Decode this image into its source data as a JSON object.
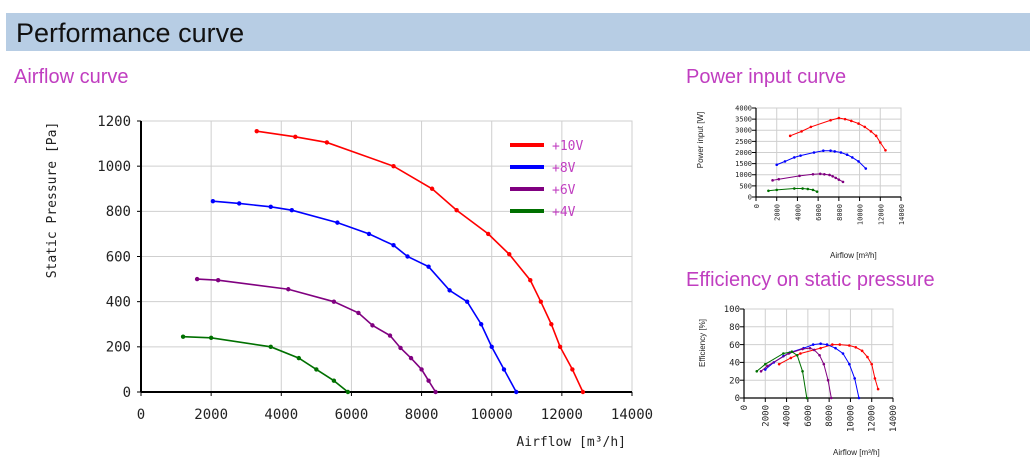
{
  "page": {
    "title": "Performance curve",
    "accent": "#c03ec0",
    "header_bg": "#b7cde4"
  },
  "chart_data": [
    {
      "title": "Airflow curve",
      "type": "line",
      "xlabel": "Airflow [m³/h]",
      "ylabel": "Static Pressure [Pa]",
      "xlim": [
        0,
        14000
      ],
      "ylim": [
        0,
        1200
      ],
      "xticks": [
        0,
        2000,
        4000,
        6000,
        8000,
        10000,
        12000,
        14000
      ],
      "yticks": [
        0,
        200,
        400,
        600,
        800,
        1000,
        1200
      ],
      "grid": true,
      "legend": "top-right",
      "series": [
        {
          "name": "+10V",
          "color": "#ff0000",
          "x": [
            3300,
            4400,
            5300,
            7200,
            8300,
            9000,
            9900,
            10500,
            11100,
            11400,
            11700,
            11950,
            12300,
            12600
          ],
          "y": [
            1155,
            1130,
            1105,
            1000,
            900,
            805,
            700,
            610,
            495,
            400,
            300,
            200,
            100,
            0
          ]
        },
        {
          "name": "+8V",
          "color": "#0000ff",
          "x": [
            2050,
            2800,
            3700,
            4300,
            5600,
            6500,
            7200,
            7600,
            8200,
            8800,
            9300,
            9700,
            10000,
            10350,
            10700
          ],
          "y": [
            845,
            835,
            820,
            805,
            750,
            700,
            650,
            600,
            555,
            450,
            400,
            300,
            200,
            100,
            0
          ]
        },
        {
          "name": "+6V",
          "color": "#800080",
          "x": [
            1600,
            2200,
            4200,
            5500,
            6200,
            6600,
            7100,
            7400,
            7700,
            8000,
            8200,
            8400
          ],
          "y": [
            500,
            495,
            455,
            400,
            350,
            295,
            250,
            195,
            150,
            100,
            50,
            0
          ]
        },
        {
          "name": "+4V",
          "color": "#007000",
          "x": [
            1200,
            2000,
            3700,
            4500,
            5000,
            5500,
            5900
          ],
          "y": [
            245,
            240,
            200,
            150,
            100,
            50,
            0
          ]
        }
      ]
    },
    {
      "title": "Power input curve",
      "type": "line",
      "xlabel": "Airflow [m³/h]",
      "ylabel": "Power input [W]",
      "xlim": [
        0,
        14000
      ],
      "ylim": [
        0,
        4000
      ],
      "xticks": [
        0,
        2000,
        4000,
        6000,
        8000,
        10000,
        12000,
        14000
      ],
      "yticks": [
        0,
        500,
        1000,
        1500,
        2000,
        2500,
        3000,
        3500,
        4000
      ],
      "grid": true,
      "series": [
        {
          "color": "#ff0000",
          "x": [
            3300,
            4400,
            5300,
            7200,
            8000,
            8600,
            9200,
            9900,
            10500,
            11100,
            11600,
            12000,
            12500
          ],
          "y": [
            2750,
            2950,
            3150,
            3450,
            3550,
            3500,
            3420,
            3300,
            3150,
            2950,
            2750,
            2450,
            2100
          ]
        },
        {
          "color": "#0000ff",
          "x": [
            2000,
            2800,
            3700,
            4300,
            5600,
            6500,
            7200,
            7600,
            8200,
            8800,
            9300,
            9900,
            10600
          ],
          "y": [
            1450,
            1600,
            1780,
            1860,
            2000,
            2080,
            2080,
            2050,
            2000,
            1900,
            1780,
            1600,
            1280
          ]
        },
        {
          "color": "#800080",
          "x": [
            1600,
            2200,
            4200,
            5500,
            6200,
            6600,
            7100,
            7400,
            7700,
            8000,
            8400
          ],
          "y": [
            750,
            800,
            950,
            1020,
            1040,
            1020,
            990,
            930,
            860,
            780,
            680
          ]
        },
        {
          "color": "#007000",
          "x": [
            1200,
            2000,
            3700,
            4500,
            5000,
            5500,
            5900
          ],
          "y": [
            280,
            320,
            380,
            380,
            360,
            320,
            240
          ]
        }
      ]
    },
    {
      "title": "Efficiency on static pressure",
      "type": "line",
      "xlabel": "Airflow [m³/h]",
      "ylabel": "Efficiency [%]",
      "xlim": [
        0,
        14000
      ],
      "ylim": [
        0,
        100
      ],
      "xticks": [
        0,
        2000,
        4000,
        6000,
        8000,
        10000,
        12000,
        14000
      ],
      "yticks": [
        0,
        20,
        40,
        60,
        80,
        100
      ],
      "grid": true,
      "series": [
        {
          "color": "#ff0000",
          "x": [
            3300,
            4400,
            5300,
            7200,
            8300,
            9000,
            9900,
            10500,
            11100,
            11600,
            12000,
            12300,
            12600
          ],
          "y": [
            38,
            45,
            50,
            56,
            60,
            60,
            59,
            57,
            53,
            46,
            38,
            22,
            10
          ]
        },
        {
          "color": "#0000ff",
          "x": [
            2000,
            2800,
            3700,
            4300,
            5600,
            6500,
            7200,
            7800,
            8600,
            9300,
            9900,
            10400,
            10800
          ],
          "y": [
            32,
            40,
            47,
            51,
            56,
            60,
            61,
            60,
            56,
            50,
            38,
            22,
            0
          ]
        },
        {
          "color": "#800080",
          "x": [
            1600,
            2200,
            4200,
            5500,
            6200,
            6600,
            7100,
            7500,
            7900,
            8200
          ],
          "y": [
            30,
            36,
            50,
            55,
            56,
            54,
            48,
            38,
            20,
            0
          ]
        },
        {
          "color": "#007000",
          "x": [
            1200,
            2000,
            3700,
            4500,
            5000,
            5500,
            5900
          ],
          "y": [
            30,
            38,
            50,
            52,
            48,
            30,
            0
          ]
        }
      ]
    }
  ]
}
